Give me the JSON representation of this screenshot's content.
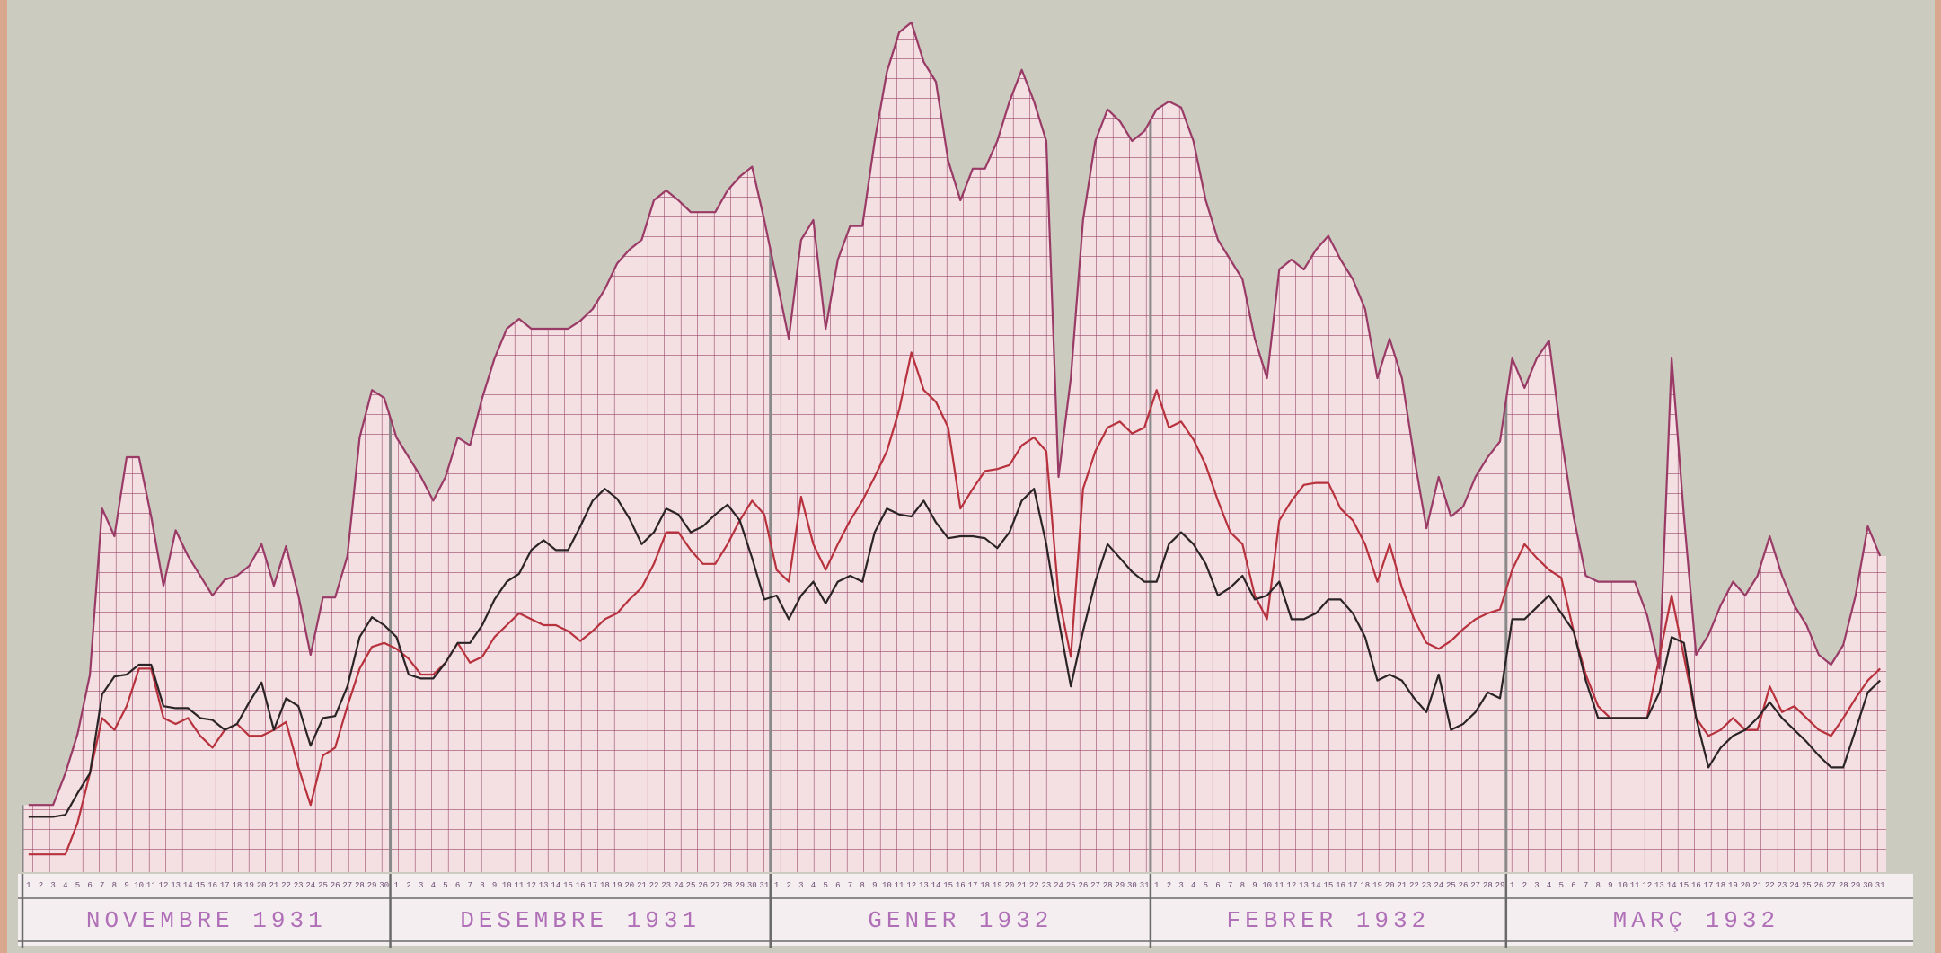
{
  "chart_data": {
    "type": "line",
    "ylim": [
      0,
      44
    ],
    "categories": [
      1,
      2,
      3,
      4,
      5,
      6,
      7,
      8,
      9,
      10,
      11,
      12,
      13,
      14,
      15,
      16,
      17,
      18,
      19,
      20,
      21,
      22,
      23,
      24,
      25,
      26,
      27,
      28,
      29,
      30,
      1,
      2,
      3,
      4,
      5,
      6,
      7,
      8,
      9,
      10,
      11,
      12,
      13,
      14,
      15,
      16,
      17,
      18,
      19,
      20,
      21,
      22,
      23,
      24,
      25,
      26,
      27,
      28,
      29,
      30,
      31,
      1,
      2,
      3,
      4,
      5,
      6,
      7,
      8,
      9,
      10,
      11,
      12,
      13,
      14,
      15,
      16,
      17,
      18,
      19,
      20,
      21,
      22,
      23,
      24,
      25,
      26,
      27,
      28,
      29,
      30,
      31,
      1,
      2,
      3,
      4,
      5,
      6,
      7,
      8,
      9,
      10,
      11,
      12,
      13,
      14,
      15,
      16,
      17,
      18,
      19,
      20,
      21,
      22,
      23,
      24,
      25,
      26,
      27,
      28,
      29,
      1,
      2,
      3,
      4,
      5,
      6,
      7,
      8,
      9,
      10,
      11,
      12,
      13,
      14,
      15,
      16,
      17,
      18,
      19,
      20,
      21,
      22,
      23,
      24,
      25,
      26,
      27,
      28,
      29,
      30,
      31
    ],
    "month_labels": [
      "NOVEMBRE 1931",
      "DESEMBRE 1931",
      "GENER 1932",
      "FEBRER 1932",
      "MARÇ 1932"
    ],
    "series": [
      {
        "color": "#9a3a66",
        "fill": "#f4dfe2",
        "values": [
          3.4,
          3.4,
          3.4,
          5,
          7,
          10,
          18.4,
          17,
          21,
          21,
          18,
          14.5,
          17.3,
          16,
          15,
          14,
          14.8,
          15,
          15.5,
          16.6,
          14.5,
          16.5,
          14,
          11,
          13.9,
          13.9,
          16,
          22,
          24.4,
          24,
          22,
          21,
          20,
          18.8,
          20,
          22,
          21.6,
          24,
          26,
          27.5,
          28,
          27.5,
          27.5,
          27.5,
          27.5,
          27.9,
          28.5,
          29.5,
          30.8,
          31.5,
          32,
          34,
          34.5,
          34,
          33.4,
          33.4,
          33.4,
          34.5,
          35.2,
          35.7,
          33,
          30,
          27,
          32,
          33,
          27.5,
          31,
          32.7,
          32.7,
          37,
          40.5,
          42.5,
          43,
          41,
          40,
          36,
          34,
          35.6,
          35.6,
          37,
          39,
          40.6,
          39,
          37,
          20,
          25,
          33,
          37,
          38.6,
          38,
          37,
          37.5,
          38.6,
          39,
          38.7,
          37,
          34,
          32,
          31,
          30,
          27,
          25,
          30.5,
          31,
          30.5,
          31.5,
          32.2,
          31,
          30,
          28.5,
          25,
          27,
          25,
          21,
          17.4,
          20,
          18,
          18.5,
          20,
          21,
          21.8,
          26,
          24.5,
          26,
          26.9,
          22,
          18,
          15,
          14.7,
          14.7,
          14.7,
          14.7,
          13,
          10.3,
          26,
          18,
          11,
          12,
          13.5,
          14.7,
          14,
          15,
          17,
          15,
          13.5,
          12.5,
          11,
          10.5,
          11.5,
          14,
          17.5,
          16
        ]
      },
      {
        "color": "#b8323e",
        "values": [
          0.9,
          0.9,
          0.9,
          0.9,
          2.5,
          5,
          7.8,
          7.2,
          8.4,
          10.3,
          10.3,
          7.8,
          7.5,
          7.8,
          6.9,
          6.3,
          7.2,
          7.5,
          6.9,
          6.9,
          7.2,
          7.6,
          5.3,
          3.4,
          5.9,
          6.3,
          8.4,
          10.3,
          11.4,
          11.6,
          11.3,
          10.8,
          10,
          10,
          10.6,
          11.6,
          10.6,
          10.9,
          11.9,
          12.5,
          13.1,
          12.8,
          12.5,
          12.5,
          12.2,
          11.7,
          12.2,
          12.8,
          13.1,
          13.8,
          14.4,
          15.6,
          17.2,
          17.2,
          16.3,
          15.6,
          15.6,
          16.6,
          17.8,
          18.8,
          18.1,
          15.3,
          14.7,
          19,
          16.6,
          15.3,
          16.6,
          17.8,
          18.8,
          20,
          21.3,
          23.4,
          26.3,
          24.4,
          23.8,
          22.5,
          18.4,
          19.4,
          20.3,
          20.4,
          20.6,
          21.6,
          22,
          21.3,
          14,
          10.9,
          19.4,
          21.3,
          22.5,
          22.8,
          22.2,
          22.5,
          24.4,
          22.5,
          22.8,
          21.9,
          20.6,
          18.8,
          17.2,
          16.6,
          14,
          12.8,
          17.8,
          18.8,
          19.6,
          19.7,
          19.7,
          18.4,
          17.8,
          16.6,
          14.7,
          16.6,
          14.4,
          12.8,
          11.6,
          11.3,
          11.7,
          12.3,
          12.8,
          13.1,
          13.3,
          15.3,
          16.6,
          15.9,
          15.3,
          14.9,
          12.2,
          10,
          8.4,
          7.8,
          7.8,
          7.8,
          7.8,
          10.9,
          14,
          10.9,
          7.8,
          6.9,
          7.2,
          7.8,
          7.2,
          7.2,
          9.4,
          8.1,
          8.4,
          7.8,
          7.2,
          6.9,
          7.8,
          8.8,
          9.7,
          10.3
        ]
      },
      {
        "color": "#2a2426",
        "values": [
          2.8,
          2.8,
          2.8,
          2.9,
          4,
          5,
          9,
          9.9,
          10,
          10.5,
          10.5,
          8.4,
          8.3,
          8.3,
          7.8,
          7.7,
          7.2,
          7.5,
          8.6,
          9.6,
          7.2,
          8.8,
          8.4,
          6.4,
          7.8,
          7.9,
          9.4,
          11.9,
          12.9,
          12.5,
          11.9,
          10,
          9.8,
          9.8,
          10.6,
          11.6,
          11.6,
          12.5,
          13.8,
          14.7,
          15.1,
          16.3,
          16.8,
          16.3,
          16.3,
          17.5,
          18.8,
          19.4,
          18.9,
          17.9,
          16.6,
          17.2,
          18.4,
          18.1,
          17.2,
          17.5,
          18.1,
          18.6,
          17.8,
          15.9,
          13.8,
          14,
          12.8,
          14,
          14.7,
          13.6,
          14.7,
          15,
          14.7,
          17.2,
          18.4,
          18.1,
          18,
          18.8,
          17.7,
          16.9,
          17,
          17,
          16.9,
          16.4,
          17.2,
          18.8,
          19.4,
          16.6,
          12.8,
          9.4,
          12.2,
          14.7,
          16.6,
          15.9,
          15.2,
          14.7,
          14.7,
          16.6,
          17.2,
          16.6,
          15.6,
          14,
          14.4,
          15,
          13.8,
          14,
          14.7,
          12.8,
          12.8,
          13.1,
          13.8,
          13.8,
          13.1,
          11.9,
          9.7,
          10,
          9.7,
          8.8,
          8.1,
          10,
          7.2,
          7.5,
          8.1,
          9.1,
          8.8,
          12.8,
          12.8,
          13.4,
          14,
          13.1,
          12.2,
          9.7,
          7.8,
          7.8,
          7.8,
          7.8,
          7.8,
          9.1,
          11.9,
          11.6,
          7.8,
          5.3,
          6.3,
          6.9,
          7.2,
          7.8,
          8.6,
          7.8,
          7.2,
          6.6,
          5.9,
          5.3,
          5.3,
          7.2,
          9.1,
          9.7
        ]
      }
    ]
  }
}
